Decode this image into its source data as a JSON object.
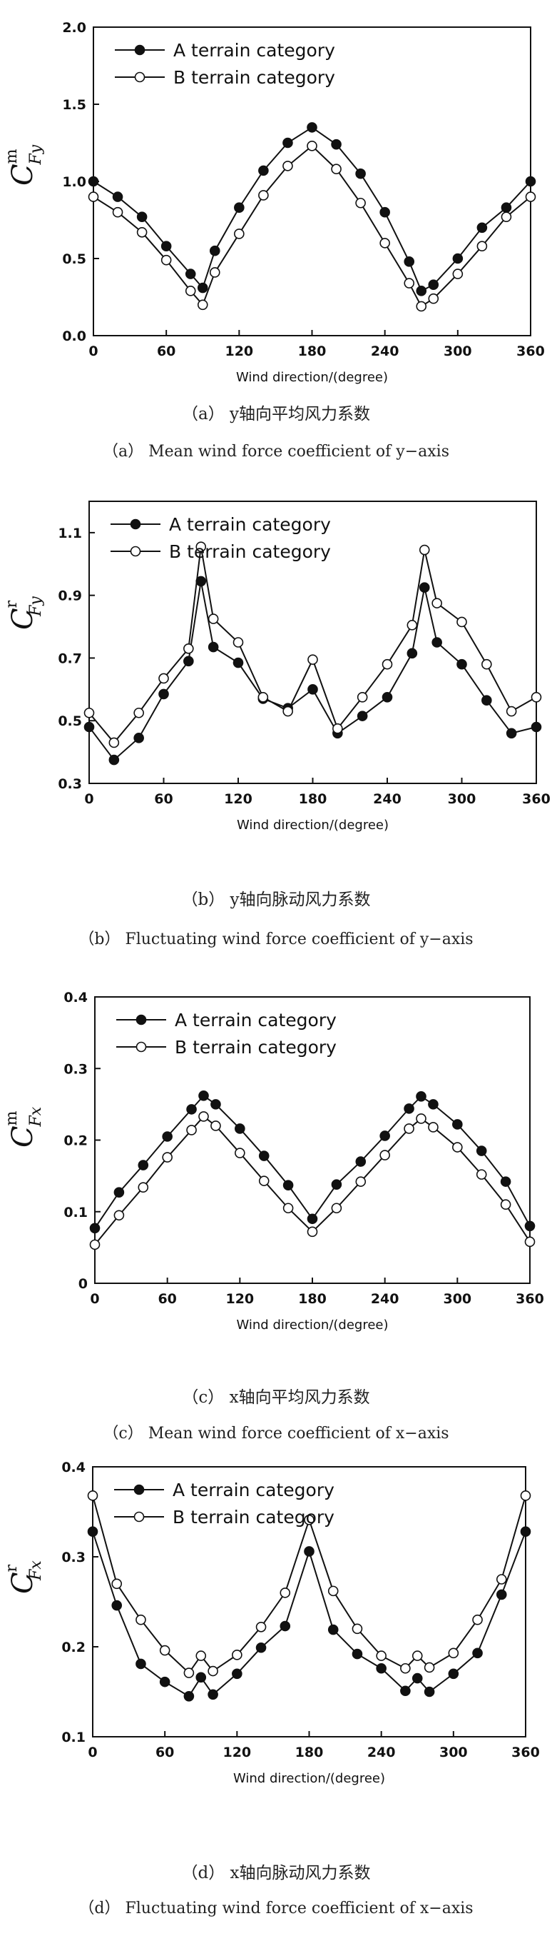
{
  "chart_data": [
    {
      "id": "a",
      "type": "line",
      "x": [
        0,
        20,
        40,
        60,
        80,
        90,
        100,
        120,
        140,
        160,
        180,
        200,
        220,
        240,
        260,
        270,
        280,
        300,
        320,
        340,
        360
      ],
      "xlabel": "Wind direction/(degree)",
      "ylabel": {
        "base": "C",
        "sup": "m",
        "sub": "Fy"
      },
      "xlim": [
        0,
        360
      ],
      "ylim": [
        0,
        2.0
      ],
      "xticks": [
        "0",
        "60",
        "120",
        "180",
        "240",
        "300",
        "360"
      ],
      "yticks": [
        "0.0",
        "0.5",
        "1.0",
        "1.5",
        "2.0"
      ],
      "legend_position": "top-left",
      "series": [
        {
          "name": "A terrain category",
          "marker": "filled-circle",
          "values": [
            1.0,
            0.9,
            0.77,
            0.58,
            0.4,
            0.31,
            0.55,
            0.83,
            1.07,
            1.25,
            1.35,
            1.24,
            1.05,
            0.8,
            0.48,
            0.29,
            0.33,
            0.5,
            0.7,
            0.83,
            1.0
          ]
        },
        {
          "name": "B terrain category",
          "marker": "open-circle",
          "values": [
            0.9,
            0.8,
            0.67,
            0.49,
            0.29,
            0.2,
            0.41,
            0.66,
            0.91,
            1.1,
            1.23,
            1.08,
            0.86,
            0.6,
            0.34,
            0.19,
            0.24,
            0.4,
            0.58,
            0.77,
            0.9
          ]
        }
      ],
      "caption_cn": "（a）  y轴向平均风力系数",
      "caption_en": "（a）  Mean wind force coefficient of y−axis"
    },
    {
      "id": "b",
      "type": "line",
      "x": [
        0,
        20,
        40,
        60,
        80,
        90,
        100,
        120,
        140,
        160,
        180,
        200,
        220,
        240,
        260,
        270,
        280,
        300,
        320,
        340,
        360
      ],
      "xlabel": "Wind direction/(degree)",
      "ylabel": {
        "base": "C",
        "sup": "r",
        "sub": "Fy"
      },
      "xlim": [
        0,
        360
      ],
      "ylim": [
        0.3,
        1.2
      ],
      "xticks": [
        "0",
        "60",
        "120",
        "180",
        "240",
        "300",
        "360"
      ],
      "yticks": [
        "0.3",
        "0.5",
        "0.7",
        "0.9",
        "1.1"
      ],
      "legend_position": "top-left",
      "series": [
        {
          "name": "A terrain category",
          "marker": "filled-circle",
          "values": [
            0.48,
            0.375,
            0.445,
            0.585,
            0.69,
            0.945,
            0.735,
            0.685,
            0.57,
            0.54,
            0.6,
            0.46,
            0.515,
            0.575,
            0.715,
            0.925,
            0.75,
            0.68,
            0.565,
            0.46,
            0.48
          ]
        },
        {
          "name": "B terrain category",
          "marker": "open-circle",
          "values": [
            0.525,
            0.43,
            0.525,
            0.635,
            0.73,
            1.055,
            0.825,
            0.75,
            0.575,
            0.53,
            0.695,
            0.475,
            0.575,
            0.68,
            0.805,
            1.045,
            0.875,
            0.815,
            0.68,
            0.53,
            0.575
          ]
        }
      ],
      "caption_cn": "（b）  y轴向脉动风力系数",
      "caption_en": "（b）  Fluctuating wind force coefficient of y−axis"
    },
    {
      "id": "c",
      "type": "line",
      "x": [
        0,
        20,
        40,
        60,
        80,
        90,
        100,
        120,
        140,
        160,
        180,
        200,
        220,
        240,
        260,
        270,
        280,
        300,
        320,
        340,
        360
      ],
      "xlabel": "Wind direction/(degree)",
      "ylabel": {
        "base": "C",
        "sup": "m",
        "sub": "Fx"
      },
      "xlim": [
        0,
        360
      ],
      "ylim": [
        0,
        0.4
      ],
      "xticks": [
        "0",
        "60",
        "120",
        "180",
        "240",
        "300",
        "360"
      ],
      "yticks": [
        "0",
        "0.1",
        "0.2",
        "0.3",
        "0.4"
      ],
      "legend_position": "top-left",
      "series": [
        {
          "name": "A terrain category",
          "marker": "filled-circle",
          "values": [
            0.077,
            0.127,
            0.165,
            0.205,
            0.243,
            0.262,
            0.25,
            0.216,
            0.178,
            0.137,
            0.09,
            0.138,
            0.17,
            0.206,
            0.244,
            0.261,
            0.25,
            0.222,
            0.185,
            0.142,
            0.08
          ]
        },
        {
          "name": "B terrain category",
          "marker": "open-circle",
          "values": [
            0.054,
            0.095,
            0.134,
            0.176,
            0.214,
            0.233,
            0.22,
            0.182,
            0.143,
            0.105,
            0.072,
            0.105,
            0.142,
            0.179,
            0.216,
            0.23,
            0.218,
            0.19,
            0.152,
            0.11,
            0.058
          ]
        }
      ],
      "caption_cn": "（c）  x轴向平均风力系数",
      "caption_en": "（c）  Mean wind force coefficient of x−axis"
    },
    {
      "id": "d",
      "type": "line",
      "x": [
        0,
        20,
        40,
        60,
        80,
        90,
        100,
        120,
        140,
        160,
        180,
        200,
        220,
        240,
        260,
        270,
        280,
        300,
        320,
        340,
        360
      ],
      "xlabel": "Wind direction/(degree)",
      "ylabel": {
        "base": "C",
        "sup": "r",
        "sub": "Fx"
      },
      "xlim": [
        0,
        360
      ],
      "ylim": [
        0.1,
        0.4
      ],
      "xticks": [
        "0",
        "60",
        "120",
        "180",
        "240",
        "300",
        "360"
      ],
      "yticks": [
        "0.1",
        "0.2",
        "0.3",
        "0.4"
      ],
      "legend_position": "top-left",
      "series": [
        {
          "name": "A terrain category",
          "marker": "filled-circle",
          "values": [
            0.328,
            0.246,
            0.181,
            0.161,
            0.145,
            0.166,
            0.147,
            0.17,
            0.199,
            0.223,
            0.306,
            0.219,
            0.192,
            0.176,
            0.151,
            0.165,
            0.15,
            0.17,
            0.193,
            0.258,
            0.328
          ]
        },
        {
          "name": "B terrain category",
          "marker": "open-circle",
          "values": [
            0.368,
            0.27,
            0.23,
            0.196,
            0.171,
            0.19,
            0.173,
            0.191,
            0.222,
            0.26,
            0.341,
            0.262,
            0.22,
            0.19,
            0.176,
            0.19,
            0.177,
            0.193,
            0.23,
            0.275,
            0.368
          ]
        }
      ],
      "caption_cn": "（d）  x轴向脉动风力系数",
      "caption_en": "（d）  Fluctuating wind force coefficient of x−axis"
    }
  ]
}
